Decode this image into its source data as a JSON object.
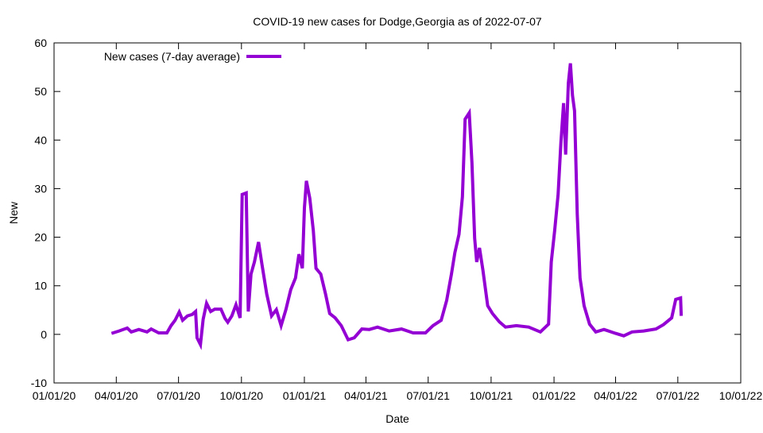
{
  "chart_data": {
    "type": "line",
    "title": "COVID-19 new cases for Dodge,Georgia as of 2022-07-07",
    "xlabel": "Date",
    "ylabel": "New",
    "ylim": [
      -10,
      60
    ],
    "xlim": [
      "2020-01-01",
      "2022-10-01"
    ],
    "yticks": [
      "-10",
      "0",
      "10",
      "20",
      "30",
      "40",
      "50",
      "60"
    ],
    "xticks": [
      {
        "date": "2020-01-01",
        "label": "01/01/20"
      },
      {
        "date": "2020-04-01",
        "label": "04/01/20"
      },
      {
        "date": "2020-07-01",
        "label": "07/01/20"
      },
      {
        "date": "2020-10-01",
        "label": "10/01/20"
      },
      {
        "date": "2021-01-01",
        "label": "01/01/21"
      },
      {
        "date": "2021-04-01",
        "label": "04/01/21"
      },
      {
        "date": "2021-07-01",
        "label": "07/01/21"
      },
      {
        "date": "2021-10-01",
        "label": "10/01/21"
      },
      {
        "date": "2022-01-01",
        "label": "01/01/22"
      },
      {
        "date": "2022-04-01",
        "label": "04/01/22"
      },
      {
        "date": "2022-07-01",
        "label": "07/01/22"
      },
      {
        "date": "2022-10-01",
        "label": "10/01/22"
      }
    ],
    "grid": false,
    "legend_position": "top-left",
    "series": [
      {
        "name": "New cases (7-day average)",
        "color": "#9400d3",
        "points": [
          [
            "2020-03-25",
            0.2
          ],
          [
            "2020-04-05",
            0.7
          ],
          [
            "2020-04-17",
            1.3
          ],
          [
            "2020-04-23",
            0.5
          ],
          [
            "2020-05-04",
            1.0
          ],
          [
            "2020-05-16",
            0.5
          ],
          [
            "2020-05-22",
            1.1
          ],
          [
            "2020-06-02",
            0.3
          ],
          [
            "2020-06-14",
            0.3
          ],
          [
            "2020-06-20",
            1.8
          ],
          [
            "2020-06-26",
            2.9
          ],
          [
            "2020-07-02",
            4.6
          ],
          [
            "2020-07-07",
            2.9
          ],
          [
            "2020-07-14",
            3.8
          ],
          [
            "2020-07-21",
            4.1
          ],
          [
            "2020-07-26",
            4.7
          ],
          [
            "2020-07-28",
            -0.7
          ],
          [
            "2020-08-02",
            -2.1
          ],
          [
            "2020-08-06",
            3.1
          ],
          [
            "2020-08-11",
            6.4
          ],
          [
            "2020-08-17",
            4.7
          ],
          [
            "2020-08-23",
            5.2
          ],
          [
            "2020-09-01",
            5.2
          ],
          [
            "2020-09-07",
            3.3
          ],
          [
            "2020-09-11",
            2.5
          ],
          [
            "2020-09-17",
            3.8
          ],
          [
            "2020-09-23",
            6.1
          ],
          [
            "2020-09-29",
            3.4
          ],
          [
            "2020-10-02",
            28.8
          ],
          [
            "2020-10-08",
            29.1
          ],
          [
            "2020-10-11",
            4.7
          ],
          [
            "2020-10-15",
            12.4
          ],
          [
            "2020-10-20",
            14.9
          ],
          [
            "2020-10-26",
            19.0
          ],
          [
            "2020-10-31",
            14.4
          ],
          [
            "2020-11-07",
            8.3
          ],
          [
            "2020-11-14",
            3.8
          ],
          [
            "2020-11-21",
            5.1
          ],
          [
            "2020-11-28",
            1.8
          ],
          [
            "2020-12-05",
            5.1
          ],
          [
            "2020-12-12",
            9.2
          ],
          [
            "2020-12-19",
            11.6
          ],
          [
            "2020-12-24",
            16.5
          ],
          [
            "2020-12-29",
            13.6
          ],
          [
            "2021-01-01",
            26.0
          ],
          [
            "2021-01-04",
            31.6
          ],
          [
            "2021-01-09",
            28.0
          ],
          [
            "2021-01-14",
            21.4
          ],
          [
            "2021-01-18",
            13.6
          ],
          [
            "2021-01-25",
            12.4
          ],
          [
            "2021-02-01",
            8.3
          ],
          [
            "2021-02-07",
            4.3
          ],
          [
            "2021-02-15",
            3.4
          ],
          [
            "2021-02-24",
            1.8
          ],
          [
            "2021-03-06",
            -1.1
          ],
          [
            "2021-03-15",
            -0.7
          ],
          [
            "2021-03-26",
            1.1
          ],
          [
            "2021-04-06",
            1.0
          ],
          [
            "2021-04-18",
            1.5
          ],
          [
            "2021-05-05",
            0.7
          ],
          [
            "2021-05-23",
            1.1
          ],
          [
            "2021-06-09",
            0.3
          ],
          [
            "2021-06-27",
            0.3
          ],
          [
            "2021-07-08",
            1.8
          ],
          [
            "2021-07-20",
            2.9
          ],
          [
            "2021-07-28",
            7.0
          ],
          [
            "2021-08-04",
            12.4
          ],
          [
            "2021-08-09",
            16.8
          ],
          [
            "2021-08-15",
            20.6
          ],
          [
            "2021-08-20",
            28.3
          ],
          [
            "2021-08-24",
            44.3
          ],
          [
            "2021-08-30",
            45.6
          ],
          [
            "2021-09-03",
            35.3
          ],
          [
            "2021-09-07",
            19.8
          ],
          [
            "2021-09-10",
            14.9
          ],
          [
            "2021-09-14",
            17.8
          ],
          [
            "2021-09-19",
            13.2
          ],
          [
            "2021-09-26",
            5.9
          ],
          [
            "2021-10-03",
            4.3
          ],
          [
            "2021-10-13",
            2.6
          ],
          [
            "2021-10-22",
            1.5
          ],
          [
            "2021-11-07",
            1.8
          ],
          [
            "2021-11-25",
            1.5
          ],
          [
            "2021-12-12",
            0.5
          ],
          [
            "2021-12-24",
            2.1
          ],
          [
            "2021-12-28",
            14.9
          ],
          [
            "2022-01-02",
            21.4
          ],
          [
            "2022-01-07",
            28.8
          ],
          [
            "2022-01-11",
            39.4
          ],
          [
            "2022-01-15",
            47.6
          ],
          [
            "2022-01-18",
            37.0
          ],
          [
            "2022-01-22",
            51.7
          ],
          [
            "2022-01-25",
            55.8
          ],
          [
            "2022-01-28",
            49.2
          ],
          [
            "2022-01-31",
            46.0
          ],
          [
            "2022-02-04",
            24.7
          ],
          [
            "2022-02-08",
            11.6
          ],
          [
            "2022-02-14",
            5.9
          ],
          [
            "2022-02-22",
            2.1
          ],
          [
            "2022-03-03",
            0.5
          ],
          [
            "2022-03-15",
            1.0
          ],
          [
            "2022-04-01",
            0.2
          ],
          [
            "2022-04-13",
            -0.3
          ],
          [
            "2022-04-25",
            0.5
          ],
          [
            "2022-05-12",
            0.7
          ],
          [
            "2022-05-30",
            1.1
          ],
          [
            "2022-06-10",
            2.0
          ],
          [
            "2022-06-22",
            3.4
          ],
          [
            "2022-06-28",
            7.2
          ],
          [
            "2022-07-05",
            7.5
          ],
          [
            "2022-07-06",
            3.8
          ]
        ]
      }
    ]
  }
}
